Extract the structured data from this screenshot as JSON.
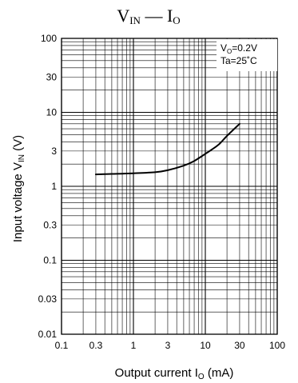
{
  "chart_data": {
    "type": "line",
    "title": {
      "prefix": "V",
      "prefix_sub": "IN",
      "separator": " — ",
      "suffix": "I",
      "suffix_sub": "O"
    },
    "xlabel": {
      "text": "Output current  I",
      "sub": "O",
      "unit": "  (mA)"
    },
    "ylabel": {
      "text": "Input voltage   V",
      "sub": "IN",
      "unit": "   (V)"
    },
    "x_scale": "log",
    "y_scale": "log",
    "xlim": [
      0.1,
      100
    ],
    "ylim": [
      0.01,
      100
    ],
    "x_ticks": [
      0.1,
      0.3,
      1,
      3,
      10,
      30,
      100
    ],
    "x_tick_labels": [
      "0.1",
      "0.3",
      "1",
      "3",
      "10",
      "30",
      "100"
    ],
    "y_ticks": [
      0.01,
      0.03,
      0.1,
      0.3,
      1,
      3,
      10,
      30,
      100
    ],
    "y_tick_labels": [
      "0.01",
      "0.03",
      "0.1",
      "0.3",
      "1",
      "3",
      "10",
      "30",
      "100"
    ],
    "grid": true,
    "annotations": [
      {
        "prefix": "V",
        "sub": "O",
        "suffix": "=0.2V"
      },
      {
        "prefix": "Ta=25˚C",
        "sub": "",
        "suffix": ""
      }
    ],
    "series": [
      {
        "x": [
          0.3,
          0.5,
          1,
          2,
          3,
          5,
          7,
          10,
          15,
          20,
          30
        ],
        "y": [
          1.45,
          1.47,
          1.5,
          1.55,
          1.65,
          1.9,
          2.2,
          2.75,
          3.6,
          4.8,
          7.0
        ]
      }
    ]
  }
}
